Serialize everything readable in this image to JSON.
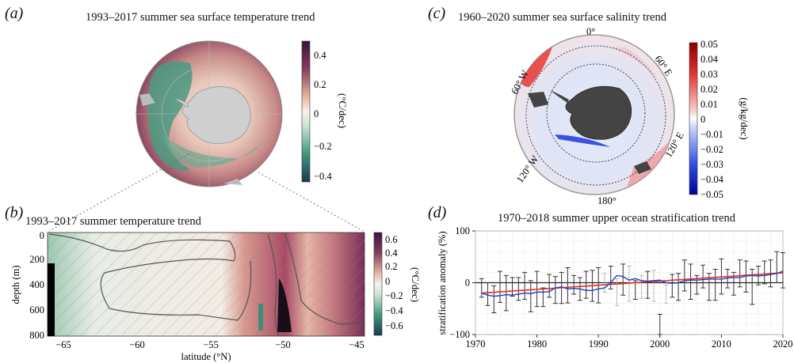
{
  "panels": {
    "a": {
      "letter": "(a)",
      "title": "1993–2017 summer sea surface temperature trend",
      "colorbar": {
        "ticks": [
          "0.4",
          "0.2",
          "0",
          "−0.2",
          "−0.4"
        ],
        "unit": "(°C/dec)"
      }
    },
    "b": {
      "letter": "(b)",
      "title": "1993–2017 summer temperature trend",
      "xlabel": "latitude (°N)",
      "ylabel": "depth (m)",
      "xticks": [
        "−65",
        "−60",
        "−55",
        "−50",
        "−45"
      ],
      "yticks": [
        "0",
        "200",
        "400",
        "600",
        "800"
      ],
      "colorbar": {
        "ticks": [
          "0.6",
          "0.4",
          "0.2",
          "0",
          "−0.2",
          "−0.4",
          "−0.6"
        ],
        "unit": "(°C/dec)"
      }
    },
    "c": {
      "letter": "(c)",
      "title": "1960–2020 summer sea surface salinity trend",
      "map_labels": [
        "0°",
        "60° E",
        "120° E",
        "180°",
        "120° W",
        "60° W"
      ],
      "colorbar": {
        "ticks": [
          "0.05",
          "0.04",
          "0.03",
          "0.02",
          "0.01",
          "0",
          "−0.01",
          "−0.02",
          "−0.03",
          "−0.04",
          "−0.05"
        ],
        "unit": "(g/kg/dec)"
      }
    },
    "d": {
      "letter": "(d)",
      "title": "1970–2018 summer upper ocean stratification trend",
      "ylabel": "stratification anomaly (%)"
    }
  },
  "chart_data": {
    "type": "line",
    "title": "1970–2018 summer upper ocean stratification trend",
    "xlabel": "",
    "ylabel": "stratification anomaly (%)",
    "xlim": [
      1970,
      2020
    ],
    "ylim": [
      -100,
      100
    ],
    "xticks": [
      1970,
      1980,
      1990,
      2000,
      2010,
      2020
    ],
    "yticks": [
      -100,
      0,
      100
    ],
    "x": [
      1971,
      1972,
      1973,
      1974,
      1975,
      1976,
      1977,
      1978,
      1979,
      1980,
      1981,
      1982,
      1983,
      1984,
      1985,
      1986,
      1987,
      1988,
      1989,
      1990,
      1991,
      1992,
      1993,
      1994,
      1995,
      1996,
      1997,
      1998,
      1999,
      2000,
      2001,
      2002,
      2003,
      2004,
      2005,
      2006,
      2007,
      2008,
      2009,
      2010,
      2011,
      2012,
      2013,
      2014,
      2015,
      2016,
      2017,
      2018,
      2019,
      2020
    ],
    "series": [
      {
        "values": [
          -20,
          -24,
          -26,
          -25,
          -23,
          -24,
          -22,
          -20,
          -21,
          -18,
          -18,
          -17,
          -10,
          -8,
          -12,
          -11,
          -12,
          -15,
          -15,
          -12,
          -10,
          0,
          14,
          12,
          5,
          8,
          4,
          3,
          4,
          5,
          0,
          -1,
          0,
          4,
          5,
          5,
          6,
          7,
          7,
          7,
          9,
          10,
          10,
          13,
          14,
          13,
          14,
          16,
          18,
          22
        ]
      },
      {
        "values": [
          -20,
          -19.2,
          -18.4,
          -17.6,
          -16.8,
          -16,
          -15.2,
          -14.4,
          -13.6,
          -12.8,
          -12,
          -11.2,
          -10.4,
          -9.6,
          -8.8,
          -8,
          -7.2,
          -6.4,
          -5.6,
          -4.8,
          -4,
          -3.2,
          -2.4,
          -1.6,
          -0.8,
          0,
          0.8,
          1.6,
          2.4,
          3.2,
          4,
          4.8,
          5.6,
          6.4,
          7.2,
          8,
          8.8,
          9.6,
          10.4,
          11.2,
          12,
          12.8,
          13.6,
          14.4,
          15.2,
          16,
          16.8,
          17.6,
          18.4,
          19.2
        ]
      },
      {
        "values": [
          -10,
          -22,
          -32,
          -8,
          -20,
          -8,
          -12,
          -6,
          -26,
          -12,
          -28,
          -6,
          -14,
          -10,
          -5,
          -4,
          -12,
          -4,
          -6,
          -5,
          0,
          10,
          -18,
          6,
          -2,
          -14,
          -8,
          -4,
          -6,
          -95,
          -22,
          -6,
          -8,
          14,
          2,
          -4,
          12,
          -8,
          -4,
          12,
          8,
          -2,
          18,
          12,
          -8,
          14,
          20,
          18,
          30,
          24
        ]
      }
    ],
    "grid": true,
    "colors": {
      "annual": "#444444",
      "smoothed": "#1f3fbf",
      "trend": "#e03020"
    }
  }
}
